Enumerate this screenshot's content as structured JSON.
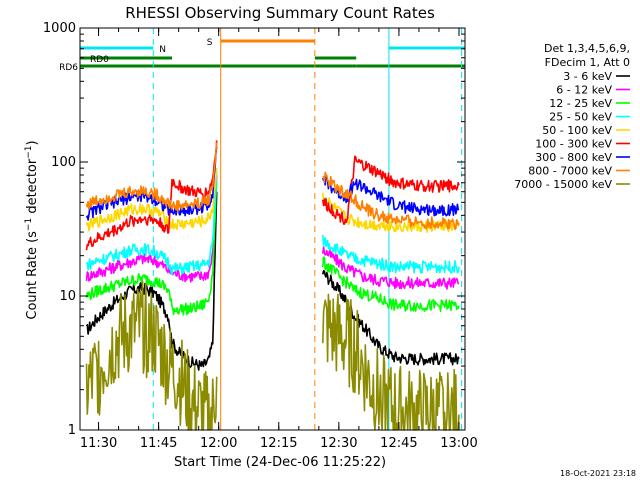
{
  "chart_data": {
    "type": "line",
    "title": "RHESSI Observing Summary Count Rates",
    "xlabel": "Start Time (24-Dec-06 11:25:22)",
    "ylabel": "Count Rate (s⁻¹ detector⁻¹)",
    "ylabel_parts": {
      "pre": "Count Rate (s",
      "sup1": "−1",
      "mid": " detector",
      "sup2": "−1",
      "post": ")"
    },
    "y_scale": "log",
    "ylim": [
      1,
      1000
    ],
    "xlim": [
      "11:25:22",
      "13:01:30"
    ],
    "x_ticks": [
      "11:30",
      "11:45",
      "12:00",
      "12:15",
      "12:30",
      "12:45",
      "13:00"
    ],
    "y_ticks": [
      "1",
      "10",
      "100",
      "1000"
    ],
    "timestamp": "18-Oct-2021 23:18",
    "legend": {
      "placement": "right",
      "header": [
        "Det 1,3,4,5,6,9,",
        "FDecim 1, Att 0"
      ]
    },
    "flag_bars": [
      {
        "label": "N",
        "color": "#00e5ee",
        "segments": [
          [
            "11:25:22",
            "11:43:40"
          ],
          [
            "12:42:30",
            "13:01:30"
          ]
        ]
      },
      {
        "label": "S",
        "color": "#ff7f00",
        "segments": [
          [
            "12:00:30",
            "12:24:00"
          ]
        ]
      },
      {
        "label": "RD0",
        "color": "#008000",
        "segments": [
          [
            "11:25:22",
            "11:48:20"
          ],
          [
            "12:24:00",
            "12:34:20"
          ]
        ]
      },
      {
        "label": "RD6",
        "color": "#008000",
        "segments": [
          [
            "11:25:22",
            "11:48:20"
          ],
          [
            "11:48:20",
            "12:24:00"
          ],
          [
            "12:24:00",
            "12:34:20"
          ],
          [
            "12:34:20",
            "13:01:30"
          ]
        ]
      }
    ],
    "vertical_markers": [
      {
        "time": "11:43:40",
        "color": "#00e5ee",
        "style": "dashed"
      },
      {
        "time": "12:00:30",
        "color": "#ff7f00",
        "style": "solid"
      },
      {
        "time": "12:24:00",
        "color": "#ff7f00",
        "style": "dashed"
      },
      {
        "time": "12:42:30",
        "color": "#00e5ee",
        "style": "solid"
      },
      {
        "time": "13:00:40",
        "color": "#00e5ee",
        "style": "dashed"
      }
    ],
    "series": [
      {
        "name": "3 - 6 keV",
        "color": "#000000",
        "segments": [
          {
            "x": [
              "11:27:00",
              "11:30:00",
              "11:34:00",
              "11:38:00",
              "11:41:00",
              "11:44:00",
              "11:46:00",
              "11:47:30",
              "11:48:20",
              "11:50:00",
              "11:53:00",
              "11:56:00",
              "11:57:30",
              "11:58:30",
              "11:59:30"
            ],
            "y": [
              5.5,
              7,
              9,
              11,
              11.5,
              10.5,
              8.5,
              7,
              4.5,
              3.8,
              3.2,
              3.0,
              3.3,
              4.5,
              60
            ]
          },
          {
            "x": [
              "12:26:00",
              "12:28:00",
              "12:30:00",
              "12:32:00",
              "12:34:00",
              "12:36:00",
              "12:38:00",
              "12:40:00",
              "12:42:00",
              "12:44:00",
              "12:48:00",
              "12:52:00",
              "12:56:00",
              "13:00:00"
            ],
            "y": [
              15,
              13,
              11,
              9,
              7,
              6,
              5,
              4.2,
              3.8,
              3.5,
              3.4,
              3.4,
              3.4,
              3.4
            ]
          }
        ]
      },
      {
        "name": "6 - 12 keV",
        "color": "#ff00ff",
        "segments": [
          {
            "x": [
              "11:27:00",
              "11:30:00",
              "11:34:00",
              "11:38:00",
              "11:41:00",
              "11:44:00",
              "11:46:00",
              "11:47:30",
              "11:48:20",
              "11:50:00",
              "11:53:00",
              "11:56:00",
              "11:57:30",
              "11:58:30",
              "11:59:30"
            ],
            "y": [
              14,
              15,
              16.5,
              18,
              19,
              18.5,
              17,
              15.5,
              15,
              14.5,
              14,
              14,
              15,
              20,
              80
            ]
          },
          {
            "x": [
              "12:26:00",
              "12:28:00",
              "12:30:00",
              "12:32:00",
              "12:34:00",
              "12:36:00",
              "12:38:00",
              "12:40:00",
              "12:42:00",
              "12:44:00",
              "12:48:00",
              "12:52:00",
              "12:56:00",
              "13:00:00"
            ],
            "y": [
              22,
              20,
              18,
              16,
              15,
              14,
              13.5,
              13,
              13,
              12.5,
              12.5,
              12.5,
              12.5,
              12.5
            ]
          }
        ]
      },
      {
        "name": "12 - 25 keV",
        "color": "#00ff00",
        "segments": [
          {
            "x": [
              "11:27:00",
              "11:30:00",
              "11:34:00",
              "11:38:00",
              "11:41:00",
              "11:44:00",
              "11:46:00",
              "11:47:30",
              "11:48:20",
              "11:50:00",
              "11:53:00",
              "11:56:00",
              "11:57:30",
              "11:58:30",
              "11:59:30"
            ],
            "y": [
              10,
              11,
              12,
              13,
              13.5,
              13,
              12,
              11,
              8,
              8,
              8,
              8.5,
              9.5,
              15,
              70
            ]
          },
          {
            "x": [
              "12:26:00",
              "12:28:00",
              "12:30:00",
              "12:32:00",
              "12:34:00",
              "12:36:00",
              "12:38:00",
              "12:40:00",
              "12:42:00",
              "12:44:00",
              "12:48:00",
              "12:52:00",
              "12:56:00",
              "13:00:00"
            ],
            "y": [
              18,
              16,
              14,
              12.5,
              11,
              10.5,
              10,
              9.5,
              9,
              8.5,
              8.5,
              8.5,
              8.5,
              8.5
            ]
          }
        ]
      },
      {
        "name": "25 - 50 keV",
        "color": "#00ffff",
        "segments": [
          {
            "x": [
              "11:27:00",
              "11:30:00",
              "11:34:00",
              "11:38:00",
              "11:41:00",
              "11:44:00",
              "11:46:00",
              "11:47:30",
              "11:48:20",
              "11:50:00",
              "11:53:00",
              "11:56:00",
              "11:57:30",
              "11:58:30",
              "11:59:30"
            ],
            "y": [
              17,
              18.5,
              20,
              22,
              22.5,
              21.5,
              19.5,
              18,
              16,
              16,
              16.5,
              17,
              18,
              25,
              85
            ]
          },
          {
            "x": [
              "12:26:00",
              "12:28:00",
              "12:30:00",
              "12:32:00",
              "12:34:00",
              "12:36:00",
              "12:38:00",
              "12:40:00",
              "12:42:00",
              "12:44:00",
              "12:48:00",
              "12:52:00",
              "12:56:00",
              "13:00:00"
            ],
            "y": [
              26,
              24,
              22,
              20,
              19,
              18.5,
              18,
              17.5,
              17,
              16.5,
              16.5,
              16.5,
              16.5,
              16.5
            ]
          }
        ]
      },
      {
        "name": "50 - 100 keV",
        "color": "#ffd700",
        "segments": [
          {
            "x": [
              "11:27:00",
              "11:30:00",
              "11:34:00",
              "11:38:00",
              "11:41:00",
              "11:44:00",
              "11:46:00",
              "11:47:30",
              "11:48:20",
              "11:50:00",
              "11:53:00",
              "11:56:00",
              "11:57:30",
              "11:58:30",
              "11:59:30"
            ],
            "y": [
              33,
              36,
              40,
              44,
              45,
              43,
              40,
              36,
              34,
              34,
              35,
              36,
              38,
              45,
              90
            ]
          },
          {
            "x": [
              "12:26:00",
              "12:28:00",
              "12:30:00",
              "12:32:00",
              "12:34:00",
              "12:36:00",
              "12:38:00",
              "12:40:00",
              "12:42:00",
              "12:44:00",
              "12:48:00",
              "12:52:00",
              "12:56:00",
              "13:00:00"
            ],
            "y": [
              55,
              48,
              42,
              38,
              36,
              35,
              34,
              34,
              34,
              33,
              33,
              33,
              33,
              33
            ]
          }
        ]
      },
      {
        "name": "100 - 300 keV",
        "color": "#ff0000",
        "segments": [
          {
            "x": [
              "11:27:00",
              "11:30:00",
              "11:34:00",
              "11:38:00",
              "11:41:00",
              "11:44:00",
              "11:46:00",
              "11:47:30",
              "11:48:20",
              "11:50:00",
              "11:53:00",
              "11:56:00",
              "11:57:30",
              "11:58:30",
              "11:59:30"
            ],
            "y": [
              24,
              27,
              31,
              36,
              38,
              37,
              34,
              30,
              72,
              66,
              60,
              58,
              60,
              75,
              145
            ]
          },
          {
            "x": [
              "12:26:00",
              "12:28:00",
              "12:30:00",
              "12:32:00",
              "12:34:00",
              "12:36:00",
              "12:38:00",
              "12:40:00",
              "12:42:00",
              "12:44:00",
              "12:48:00",
              "12:52:00",
              "12:56:00",
              "13:00:00"
            ],
            "y": [
              50,
              45,
              40,
              37,
              100,
              95,
              88,
              82,
              76,
              70,
              67,
              66,
              66,
              67
            ]
          }
        ]
      },
      {
        "name": "300 - 800 keV",
        "color": "#0000ff",
        "segments": [
          {
            "x": [
              "11:27:00",
              "11:30:00",
              "11:34:00",
              "11:38:00",
              "11:41:00",
              "11:44:00",
              "11:46:00",
              "11:47:30",
              "11:48:20",
              "11:50:00",
              "11:53:00",
              "11:56:00",
              "11:57:30",
              "11:58:30",
              "11:59:30"
            ],
            "y": [
              40,
              45,
              50,
              55,
              56,
              53,
              48,
              44,
              43,
              43,
              44,
              46,
              48,
              60,
              130
            ]
          },
          {
            "x": [
              "12:26:00",
              "12:28:00",
              "12:30:00",
              "12:32:00",
              "12:34:00",
              "12:36:00",
              "12:38:00",
              "12:40:00",
              "12:42:00",
              "12:44:00",
              "12:48:00",
              "12:52:00",
              "12:56:00",
              "13:00:00"
            ],
            "y": [
              75,
              65,
              58,
              55,
              70,
              65,
              60,
              55,
              52,
              48,
              45,
              44,
              44,
              44
            ]
          }
        ]
      },
      {
        "name": "800 - 7000 keV",
        "color": "#ff7f00",
        "segments": [
          {
            "x": [
              "11:27:00",
              "11:30:00",
              "11:34:00",
              "11:38:00",
              "11:41:00",
              "11:44:00",
              "11:46:00",
              "11:47:30",
              "11:48:20",
              "11:50:00",
              "11:53:00",
              "11:56:00",
              "11:57:30",
              "11:58:30",
              "11:59:30"
            ],
            "y": [
              48,
              52,
              56,
              60,
              61,
              58,
              53,
              49,
              47,
              47,
              48,
              50,
              53,
              66,
              140
            ]
          },
          {
            "x": [
              "12:26:00",
              "12:28:00",
              "12:30:00",
              "12:32:00",
              "12:34:00",
              "12:36:00",
              "12:38:00",
              "12:40:00",
              "12:42:00",
              "12:44:00",
              "12:48:00",
              "12:52:00",
              "12:56:00",
              "13:00:00"
            ],
            "y": [
              78,
              70,
              62,
              58,
              52,
              46,
              42,
              40,
              38,
              37,
              36,
              35,
              35,
              35
            ]
          }
        ]
      },
      {
        "name": "7000 - 15000 keV",
        "color": "#8b8b00",
        "segments": [
          {
            "x": [
              "11:27:00",
              "11:30:00",
              "11:34:00",
              "11:38:00",
              "11:41:00",
              "11:44:00",
              "11:46:00",
              "11:47:30",
              "11:48:20",
              "11:50:00",
              "11:53:00",
              "11:56:00",
              "11:57:30",
              "11:58:30",
              "11:59:30"
            ],
            "y": [
              2.0,
              2.8,
              4.5,
              5.5,
              5.8,
              5.0,
              3.8,
              3.0,
              2.8,
              2.5,
              1.6,
              1.3,
              1.2,
              1.3,
              2.5
            ]
          },
          {
            "x": [
              "12:26:00",
              "12:28:00",
              "12:30:00",
              "12:32:00",
              "12:34:00",
              "12:36:00",
              "12:38:00",
              "12:40:00",
              "12:42:00",
              "12:44:00",
              "12:48:00",
              "12:52:00",
              "12:56:00",
              "13:00:00"
            ],
            "y": [
              6.0,
              5.5,
              5.0,
              4.5,
              4.0,
              3.0,
              2.2,
              1.8,
              1.5,
              1.4,
              1.3,
              1.3,
              1.3,
              1.3
            ]
          }
        ]
      }
    ]
  }
}
